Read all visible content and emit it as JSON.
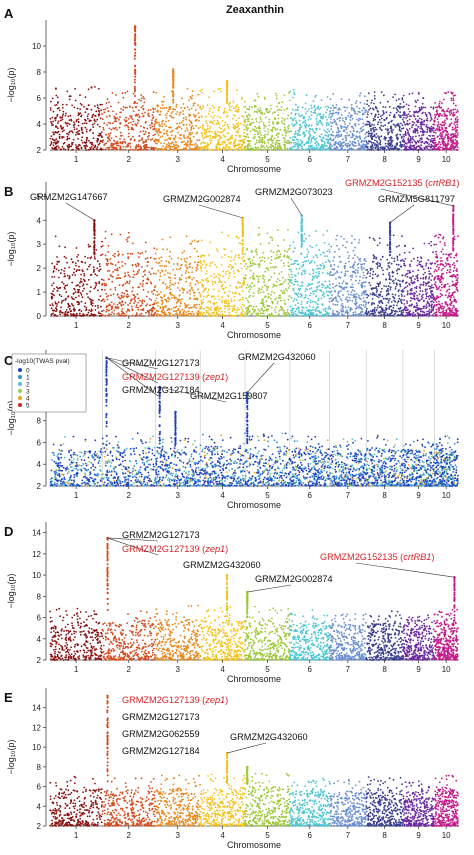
{
  "figure_title": "Zeaxanthin",
  "chart_data": [
    {
      "panel": "A",
      "type": "scatter",
      "xlabel": "Chromosome",
      "ylabel": "−log₁₀(p)",
      "ylim": [
        2,
        12
      ],
      "yticks": [
        2,
        4,
        6,
        8,
        10
      ],
      "categories": [
        "1",
        "2",
        "3",
        "4",
        "5",
        "6",
        "7",
        "8",
        "9",
        "10"
      ],
      "baseline_top": [
        5.6,
        5.4,
        5.5,
        5.6,
        5.4,
        5.5,
        5.3,
        5.4,
        5.3,
        5.5
      ],
      "peaks": [
        {
          "chromosome": 2,
          "pos": 0.62,
          "value": 11.5
        },
        {
          "chromosome": 3,
          "pos": 0.4,
          "value": 8.2
        },
        {
          "chromosome": 4,
          "pos": 0.6,
          "value": 7.3
        }
      ],
      "annotations": []
    },
    {
      "panel": "B",
      "type": "scatter",
      "xlabel": "Chromosome",
      "ylabel": "−log₁₀(p)",
      "ylim": [
        0,
        5.6
      ],
      "yticks": [
        0,
        1,
        2,
        3,
        4,
        5
      ],
      "categories": [
        "1",
        "2",
        "3",
        "4",
        "5",
        "6",
        "7",
        "8",
        "9",
        "10"
      ],
      "baseline_top": [
        2.5,
        2.7,
        2.5,
        2.6,
        2.8,
        2.7,
        2.5,
        2.5,
        2.3,
        2.6
      ],
      "peaks": [
        {
          "chromosome": 1,
          "pos": 0.85,
          "value": 4.0
        },
        {
          "chromosome": 4,
          "pos": 0.95,
          "value": 4.1
        },
        {
          "chromosome": 6,
          "pos": 0.3,
          "value": 4.2
        },
        {
          "chromosome": 8,
          "pos": 0.65,
          "value": 3.9
        },
        {
          "chromosome": 10,
          "pos": 0.8,
          "value": 4.6
        }
      ],
      "annotations": [
        {
          "label": "GRMZM2G147667",
          "chromosome": 1,
          "pos": 0.85,
          "value": 4.0,
          "color": "#111111"
        },
        {
          "label": "GRMZM2G002874",
          "chromosome": 4,
          "pos": 0.95,
          "value": 4.1,
          "color": "#111111"
        },
        {
          "label": "GRMZM2G073023",
          "chromosome": 6,
          "pos": 0.3,
          "value": 4.2,
          "color": "#111111"
        },
        {
          "label": "GRMZM2G152135 (",
          "italic": "crtRB1",
          "label_end": ")",
          "chromosome": 10,
          "pos": 0.8,
          "value": 4.6,
          "color": "#d8232a"
        },
        {
          "label": "GRMZM5G811797",
          "chromosome": 8,
          "pos": 0.65,
          "value": 3.9,
          "color": "#111111"
        }
      ]
    },
    {
      "panel": "C",
      "type": "scatter",
      "xlabel": "Chromosome",
      "ylabel": "−log₁₀(p)",
      "ylim": [
        2,
        14.5
      ],
      "yticks": [
        2,
        4,
        6,
        8
      ],
      "categories": [
        "1",
        "2",
        "3",
        "4",
        "5",
        "6",
        "7",
        "8",
        "9",
        "10"
      ],
      "baseline_top": [
        5.4,
        5.6,
        5.4,
        5.5,
        5.6,
        5.4,
        5.3,
        5.5,
        5.4,
        5.5
      ],
      "peaks": [
        {
          "chromosome": 2,
          "pos": 0.08,
          "value": 13.8
        },
        {
          "chromosome": 3,
          "pos": 0.45,
          "value": 8.8
        },
        {
          "chromosome": 5,
          "pos": 0.05,
          "value": 10.6
        },
        {
          "chromosome": 3,
          "pos": 0.1,
          "value": 11.1
        }
      ],
      "legend": {
        "title": "-log10(TWAS pval)",
        "entries": [
          "0",
          "1",
          "2",
          "3",
          "4",
          "5"
        ],
        "colors": [
          "#1f3fbf",
          "#2f8fd8",
          "#58c0cc",
          "#9ac85a",
          "#e8a32a",
          "#c82a1c"
        ]
      },
      "annotations": [
        {
          "label": "GRMZM2G127173",
          "chromosome": 2,
          "pos": 0.08,
          "value": 13.8,
          "color": "#111111"
        },
        {
          "label": "GRMZM2G127139 (",
          "italic": "zep1",
          "label_end": ")",
          "chromosome": 2,
          "pos": 0.08,
          "value": 13.8,
          "color": "#d8232a"
        },
        {
          "label": "GRMZM2G127184",
          "chromosome": 2,
          "pos": 0.08,
          "value": 13.8,
          "color": "#111111"
        },
        {
          "label": "GRMZM2G432060",
          "chromosome": 5,
          "pos": 0.05,
          "value": 10.6,
          "color": "#111111"
        },
        {
          "label": "GRMZM2G159807",
          "chromosome": 3,
          "pos": 0.1,
          "value": 11.1,
          "color": "#111111"
        }
      ]
    },
    {
      "panel": "D",
      "type": "scatter",
      "xlabel": "Chromosome",
      "ylabel": "−log₁₀(p)",
      "ylim": [
        2,
        15
      ],
      "yticks": [
        2,
        4,
        6,
        8,
        10,
        12,
        14
      ],
      "categories": [
        "1",
        "2",
        "3",
        "4",
        "5",
        "6",
        "7",
        "8",
        "9",
        "10"
      ],
      "baseline_top": [
        5.6,
        5.5,
        5.8,
        5.7,
        5.8,
        5.5,
        5.3,
        5.5,
        5.3,
        5.6
      ],
      "peaks": [
        {
          "chromosome": 2,
          "pos": 0.1,
          "value": 13.5
        },
        {
          "chromosome": 4,
          "pos": 0.6,
          "value": 10.0
        },
        {
          "chromosome": 5,
          "pos": 0.05,
          "value": 8.4
        },
        {
          "chromosome": 10,
          "pos": 0.85,
          "value": 9.8
        }
      ],
      "annotations": [
        {
          "label": "GRMZM2G127173",
          "chromosome": 2,
          "pos": 0.1,
          "value": 13.5,
          "color": "#111111"
        },
        {
          "label": "GRMZM2G127139 (",
          "italic": "zep1",
          "label_end": ")",
          "chromosome": 2,
          "pos": 0.1,
          "value": 13.5,
          "color": "#d8232a"
        },
        {
          "label": "GRMZM2G432060",
          "chromosome": 4,
          "pos": 0.6,
          "value": 10.0,
          "color": "#111111"
        },
        {
          "label": "GRMZM2G002874",
          "chromosome": 5,
          "pos": 0.05,
          "value": 8.4,
          "color": "#111111"
        },
        {
          "label": "GRMZM2G152135 (",
          "italic": "crtRB1",
          "label_end": ")",
          "chromosome": 10,
          "pos": 0.85,
          "value": 9.8,
          "color": "#d8232a"
        }
      ]
    },
    {
      "panel": "E",
      "type": "scatter",
      "xlabel": "Chromosome",
      "ylabel": "−log₁₀(p)",
      "ylim": [
        2,
        16
      ],
      "yticks": [
        2,
        4,
        6,
        8,
        10,
        12,
        14
      ],
      "categories": [
        "1",
        "2",
        "3",
        "4",
        "5",
        "6",
        "7",
        "8",
        "9",
        "10"
      ],
      "baseline_top": [
        5.8,
        5.6,
        5.8,
        5.9,
        6.0,
        5.6,
        5.5,
        5.7,
        5.4,
        5.8
      ],
      "peaks": [
        {
          "chromosome": 2,
          "pos": 0.1,
          "value": 15.2
        },
        {
          "chromosome": 4,
          "pos": 0.6,
          "value": 9.4
        },
        {
          "chromosome": 5,
          "pos": 0.05,
          "value": 8.0
        }
      ],
      "annotations": [
        {
          "label": "GRMZM2G127139 (",
          "italic": "zep1",
          "label_end": ")",
          "chromosome": 2,
          "pos": 0.1,
          "value": 15.2,
          "color": "#d8232a"
        },
        {
          "label": "GRMZM2G127173",
          "chromosome": 2,
          "pos": 0.1,
          "value": 15.2,
          "color": "#111111"
        },
        {
          "label": "GRMZM2G062559",
          "chromosome": 2,
          "pos": 0.1,
          "value": 15.2,
          "color": "#111111"
        },
        {
          "label": "GRMZM2G127184",
          "chromosome": 2,
          "pos": 0.1,
          "value": 15.2,
          "color": "#111111"
        },
        {
          "label": "GRMZM2G432060",
          "chromosome": 4,
          "pos": 0.6,
          "value": 9.4,
          "color": "#111111"
        }
      ]
    }
  ],
  "chromosome_colors": [
    "#8b1010",
    "#d4491b",
    "#e8861a",
    "#f3c21a",
    "#9dc83a",
    "#4cc6d3",
    "#6a8fd0",
    "#3a3f8f",
    "#6a2aa0",
    "#c21a8a"
  ]
}
